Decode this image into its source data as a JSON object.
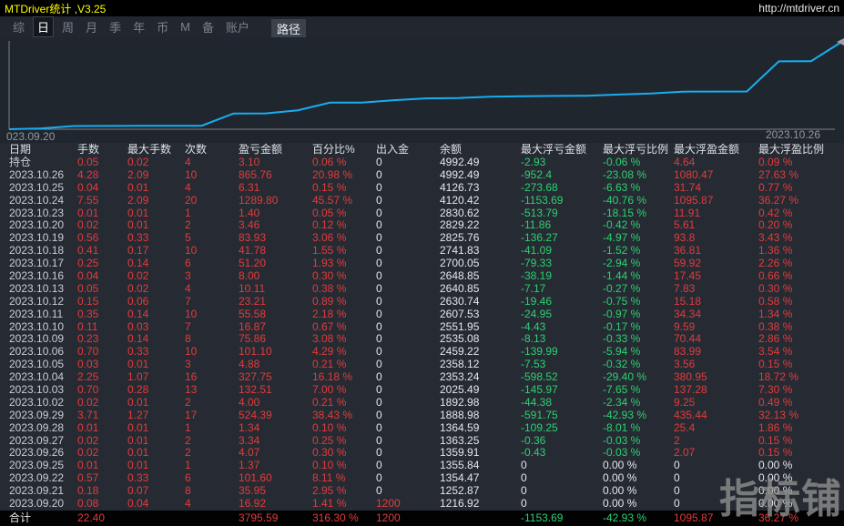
{
  "title_bar": {
    "title": "MTDriver统计 ,V3.25",
    "url": "http://mtdriver.cn"
  },
  "menu": {
    "items": [
      {
        "label": "综",
        "active": false
      },
      {
        "label": "日",
        "active": true
      },
      {
        "label": "周",
        "active": false
      },
      {
        "label": "月",
        "active": false
      },
      {
        "label": "季",
        "active": false
      },
      {
        "label": "年",
        "active": false
      },
      {
        "label": "币",
        "active": false
      },
      {
        "label": "M",
        "active": false
      },
      {
        "label": "备",
        "active": false
      },
      {
        "label": "账户",
        "active": false
      }
    ],
    "path_button": "路径"
  },
  "chart_data": {
    "type": "line",
    "title": "",
    "series_name": "余额",
    "x": [
      "2023.09.20",
      "2023.09.21",
      "2023.09.22",
      "2023.09.25",
      "2023.09.26",
      "2023.09.27",
      "2023.09.28",
      "2023.09.29",
      "2023.10.02",
      "2023.10.03",
      "2023.10.04",
      "2023.10.05",
      "2023.10.06",
      "2023.10.09",
      "2023.10.10",
      "2023.10.11",
      "2023.10.12",
      "2023.10.13",
      "2023.10.16",
      "2023.10.17",
      "2023.10.18",
      "2023.10.19",
      "2023.10.20",
      "2023.10.23",
      "2023.10.24",
      "2023.10.25",
      "2023.10.26"
    ],
    "values": [
      1216.92,
      1252.87,
      1354.47,
      1355.84,
      1359.91,
      1363.25,
      1364.59,
      1888.98,
      1892.98,
      2025.49,
      2353.24,
      2358.12,
      2459.22,
      2535.08,
      2551.95,
      2607.53,
      2630.74,
      2640.85,
      2648.85,
      2700.05,
      2741.83,
      2825.76,
      2829.22,
      2830.62,
      4120.42,
      4126.73,
      4992.49
    ],
    "ylim": [
      1216.92,
      4992.49
    ],
    "x_label_left": "023.09.20",
    "x_label_right": "2023.10.26",
    "line_color": "#17aef2",
    "axis_color": "#7c828a",
    "grid": false,
    "legend": "none"
  },
  "table": {
    "headers": [
      "日期",
      "手数",
      "最大手数",
      "次数",
      "盈亏金额",
      "百分比%",
      "出入金",
      "余额",
      "最大浮亏金额",
      "最大浮亏比例",
      "最大浮盈金额",
      "最大浮盈比例"
    ],
    "rows": [
      [
        "持仓",
        "0.05",
        "0.02",
        "4",
        "3.10",
        "0.06 %",
        "0",
        "4992.49",
        "-2.93",
        "-0.06 %",
        "4.64",
        "0.09 %"
      ],
      [
        "2023.10.26",
        "4.28",
        "2.09",
        "10",
        "865.76",
        "20.98 %",
        "0",
        "4992.49",
        "-952.4",
        "-23.08 %",
        "1080.47",
        "27.63 %"
      ],
      [
        "2023.10.25",
        "0.04",
        "0.01",
        "4",
        "6.31",
        "0.15 %",
        "0",
        "4126.73",
        "-273.68",
        "-6.63 %",
        "31.74",
        "0.77 %"
      ],
      [
        "2023.10.24",
        "7.55",
        "2.09",
        "20",
        "1289.80",
        "45.57 %",
        "0",
        "4120.42",
        "-1153.69",
        "-40.76 %",
        "1095.87",
        "36.27 %"
      ],
      [
        "2023.10.23",
        "0.01",
        "0.01",
        "1",
        "1.40",
        "0.05 %",
        "0",
        "2830.62",
        "-513.79",
        "-18.15 %",
        "11.91",
        "0.42 %"
      ],
      [
        "2023.10.20",
        "0.02",
        "0.01",
        "2",
        "3.46",
        "0.12 %",
        "0",
        "2829.22",
        "-11.86",
        "-0.42 %",
        "5.61",
        "0.20 %"
      ],
      [
        "2023.10.19",
        "0.56",
        "0.33",
        "5",
        "83.93",
        "3.06 %",
        "0",
        "2825.76",
        "-136.27",
        "-4.97 %",
        "93.8",
        "3.43 %"
      ],
      [
        "2023.10.18",
        "0.41",
        "0.17",
        "10",
        "41.78",
        "1.55 %",
        "0",
        "2741.83",
        "-41.09",
        "-1.52 %",
        "36.81",
        "1.36 %"
      ],
      [
        "2023.10.17",
        "0.25",
        "0.14",
        "6",
        "51.20",
        "1.93 %",
        "0",
        "2700.05",
        "-79.33",
        "-2.94 %",
        "59.92",
        "2.26 %"
      ],
      [
        "2023.10.16",
        "0.04",
        "0.02",
        "3",
        "8.00",
        "0.30 %",
        "0",
        "2648.85",
        "-38.19",
        "-1.44 %",
        "17.45",
        "0.66 %"
      ],
      [
        "2023.10.13",
        "0.05",
        "0.02",
        "4",
        "10.11",
        "0.38 %",
        "0",
        "2640.85",
        "-7.17",
        "-0.27 %",
        "7.83",
        "0.30 %"
      ],
      [
        "2023.10.12",
        "0.15",
        "0.06",
        "7",
        "23.21",
        "0.89 %",
        "0",
        "2630.74",
        "-19.46",
        "-0.75 %",
        "15.18",
        "0.58 %"
      ],
      [
        "2023.10.11",
        "0.35",
        "0.14",
        "10",
        "55.58",
        "2.18 %",
        "0",
        "2607.53",
        "-24.95",
        "-0.97 %",
        "34.34",
        "1.34 %"
      ],
      [
        "2023.10.10",
        "0.11",
        "0.03",
        "7",
        "16.87",
        "0.67 %",
        "0",
        "2551.95",
        "-4.43",
        "-0.17 %",
        "9.59",
        "0.38 %"
      ],
      [
        "2023.10.09",
        "0.23",
        "0.14",
        "8",
        "75.86",
        "3.08 %",
        "0",
        "2535.08",
        "-8.13",
        "-0.33 %",
        "70.44",
        "2.86 %"
      ],
      [
        "2023.10.06",
        "0.70",
        "0.33",
        "10",
        "101.10",
        "4.29 %",
        "0",
        "2459.22",
        "-139.99",
        "-5.94 %",
        "83.99",
        "3.54 %"
      ],
      [
        "2023.10.05",
        "0.03",
        "0.01",
        "3",
        "4.88",
        "0.21 %",
        "0",
        "2358.12",
        "-7.53",
        "-0.32 %",
        "3.56",
        "0.15 %"
      ],
      [
        "2023.10.04",
        "2.25",
        "1.07",
        "16",
        "327.75",
        "16.18 %",
        "0",
        "2353.24",
        "-598.52",
        "-29.40 %",
        "380.95",
        "18.72 %"
      ],
      [
        "2023.10.03",
        "0.70",
        "0.28",
        "13",
        "132.51",
        "7.00 %",
        "0",
        "2025.49",
        "-145.97",
        "-7.65 %",
        "137.28",
        "7.30 %"
      ],
      [
        "2023.10.02",
        "0.02",
        "0.01",
        "2",
        "4.00",
        "0.21 %",
        "0",
        "1892.98",
        "-44.38",
        "-2.34 %",
        "9.25",
        "0.49 %"
      ],
      [
        "2023.09.29",
        "3.71",
        "1.27",
        "17",
        "524.39",
        "38.43 %",
        "0",
        "1888.98",
        "-591.75",
        "-42.93 %",
        "435.44",
        "32.13 %"
      ],
      [
        "2023.09.28",
        "0.01",
        "0.01",
        "1",
        "1.34",
        "0.10 %",
        "0",
        "1364.59",
        "-109.25",
        "-8.01 %",
        "25.4",
        "1.86 %"
      ],
      [
        "2023.09.27",
        "0.02",
        "0.01",
        "2",
        "3.34",
        "0.25 %",
        "0",
        "1363.25",
        "-0.36",
        "-0.03 %",
        "2",
        "0.15 %"
      ],
      [
        "2023.09.26",
        "0.02",
        "0.01",
        "2",
        "4.07",
        "0.30 %",
        "0",
        "1359.91",
        "-0.43",
        "-0.03 %",
        "2.07",
        "0.15 %"
      ],
      [
        "2023.09.25",
        "0.01",
        "0.01",
        "1",
        "1.37",
        "0.10 %",
        "0",
        "1355.84",
        "0",
        "0.00 %",
        "0",
        "0.00 %"
      ],
      [
        "2023.09.22",
        "0.57",
        "0.33",
        "6",
        "101.60",
        "8.11 %",
        "0",
        "1354.47",
        "0",
        "0.00 %",
        "0",
        "0.00 %"
      ],
      [
        "2023.09.21",
        "0.18",
        "0.07",
        "8",
        "35.95",
        "2.95 %",
        "0",
        "1252.87",
        "0",
        "0.00 %",
        "0",
        "0.00 %"
      ],
      [
        "2023.09.20",
        "0.08",
        "0.04",
        "4",
        "16.92",
        "1.41 %",
        "1200",
        "1216.92",
        "0",
        "0.00 %",
        "0",
        "0.00 %"
      ]
    ],
    "total_row": [
      "合计",
      "22.40",
      "",
      "",
      "3795.59",
      "316.30 %",
      "1200",
      "",
      "-1153.69",
      "-42.93 %",
      "1095.87",
      "36.27 %"
    ]
  },
  "watermark": "指标铺",
  "colors": {
    "profit_red": "#e23b3b",
    "loss_green": "#2bd170",
    "neutral_white": "#e4e7ea",
    "title_yellow": "#ffff00",
    "line_blue": "#17aef2"
  }
}
